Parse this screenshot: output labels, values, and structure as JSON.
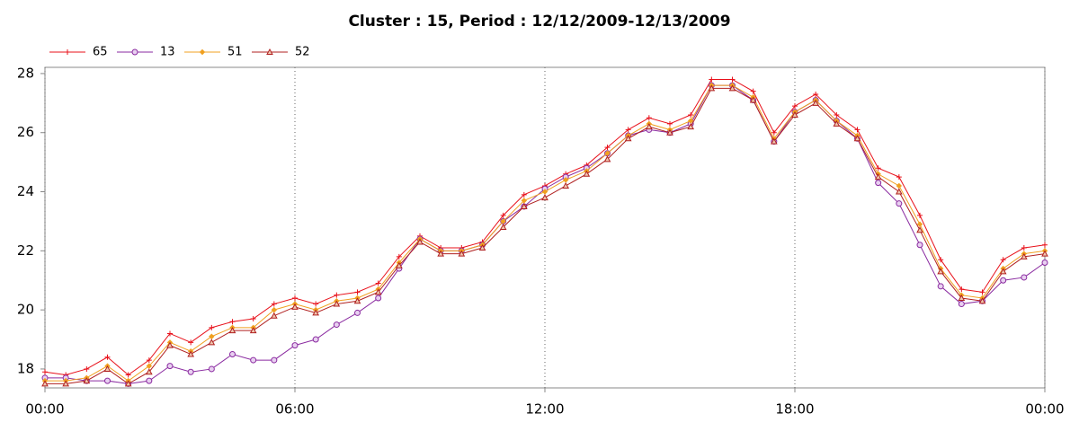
{
  "chart_data": {
    "type": "line",
    "title": "Cluster : 15, Period : 12/12/2009-12/13/2009",
    "x": [
      0,
      0.5,
      1,
      1.5,
      2,
      2.5,
      3,
      3.5,
      4,
      4.5,
      5,
      5.5,
      6,
      6.5,
      7,
      7.5,
      8,
      8.5,
      9,
      9.5,
      10,
      10.5,
      11,
      11.5,
      12,
      12.5,
      13,
      13.5,
      14,
      14.5,
      15,
      15.5,
      16,
      16.5,
      17,
      17.5,
      18,
      18.5,
      19,
      19.5,
      20,
      20.5,
      21,
      21.5,
      22,
      22.5,
      23,
      23.5,
      24
    ],
    "series": [
      {
        "name": "65",
        "color": "#e8101a",
        "marker": "plus",
        "values": [
          17.9,
          17.8,
          18.0,
          18.4,
          17.8,
          18.3,
          19.2,
          18.9,
          19.4,
          19.6,
          19.7,
          20.2,
          20.4,
          20.2,
          20.5,
          20.6,
          20.9,
          21.8,
          22.5,
          22.1,
          22.1,
          22.3,
          23.2,
          23.9,
          24.2,
          24.6,
          24.9,
          25.5,
          26.1,
          26.5,
          26.3,
          26.6,
          27.8,
          27.8,
          27.4,
          26.0,
          26.9,
          27.3,
          26.6,
          26.1,
          24.8,
          24.5,
          23.2,
          21.7,
          20.7,
          20.6,
          21.7,
          22.1,
          22.2
        ]
      },
      {
        "name": "13",
        "color": "#8a2aa0",
        "marker": "circle",
        "values": [
          17.7,
          17.7,
          17.6,
          17.6,
          17.5,
          17.6,
          18.1,
          17.9,
          18.0,
          18.5,
          18.3,
          18.3,
          18.8,
          19.0,
          19.5,
          19.9,
          20.4,
          21.4,
          22.4,
          22.0,
          22.0,
          22.2,
          23.0,
          23.5,
          24.1,
          24.5,
          24.8,
          25.3,
          25.9,
          26.1,
          26.0,
          26.3,
          27.6,
          27.6,
          27.1,
          25.7,
          26.7,
          27.1,
          26.4,
          25.8,
          24.3,
          23.6,
          22.2,
          20.8,
          20.2,
          20.3,
          21.0,
          21.1,
          21.6
        ]
      },
      {
        "name": "51",
        "color": "#f0a020",
        "marker": "diamond",
        "values": [
          17.6,
          17.6,
          17.7,
          18.1,
          17.6,
          18.1,
          18.9,
          18.6,
          19.1,
          19.4,
          19.4,
          20.0,
          20.2,
          20.0,
          20.3,
          20.4,
          20.7,
          21.6,
          22.4,
          22.0,
          22.0,
          22.2,
          23.0,
          23.7,
          24.0,
          24.4,
          24.7,
          25.3,
          25.9,
          26.3,
          26.1,
          26.4,
          27.6,
          27.6,
          27.2,
          25.8,
          26.7,
          27.1,
          26.4,
          25.9,
          24.6,
          24.2,
          22.9,
          21.4,
          20.5,
          20.4,
          21.4,
          21.9,
          22.0
        ]
      },
      {
        "name": "52",
        "color": "#b02020",
        "marker": "triangle",
        "values": [
          17.5,
          17.5,
          17.6,
          18.0,
          17.5,
          17.9,
          18.8,
          18.5,
          18.9,
          19.3,
          19.3,
          19.8,
          20.1,
          19.9,
          20.2,
          20.3,
          20.6,
          21.5,
          22.3,
          21.9,
          21.9,
          22.1,
          22.8,
          23.5,
          23.8,
          24.2,
          24.6,
          25.1,
          25.8,
          26.2,
          26.0,
          26.2,
          27.5,
          27.5,
          27.1,
          25.7,
          26.6,
          27.0,
          26.3,
          25.8,
          24.5,
          24.0,
          22.7,
          21.3,
          20.4,
          20.3,
          21.3,
          21.8,
          21.9
        ]
      }
    ],
    "xlim": [
      0,
      24
    ],
    "xticks": [
      {
        "value": 0,
        "label": "00:00"
      },
      {
        "value": 6,
        "label": "06:00"
      },
      {
        "value": 12,
        "label": "12:00"
      },
      {
        "value": 18,
        "label": "18:00"
      },
      {
        "value": 24,
        "label": "00:00"
      }
    ],
    "ylim": [
      17.36,
      28.21
    ],
    "yticks": [
      18,
      20,
      22,
      24,
      26,
      28
    ],
    "grid": true
  }
}
